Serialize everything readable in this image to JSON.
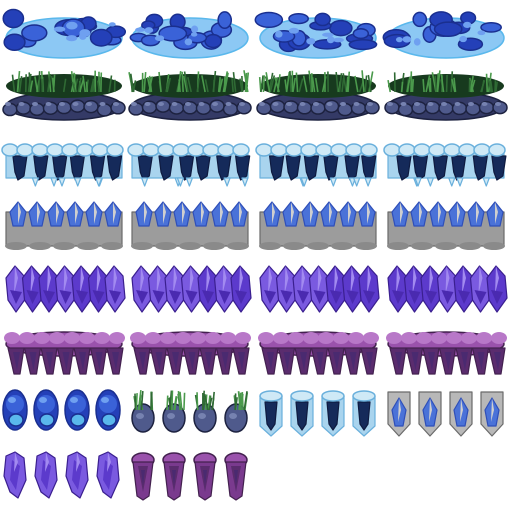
{
  "sprite_sheet": {
    "background": "#ffffff",
    "palettes": {
      "blue-rock": {
        "outline": "#1a2f8f",
        "dark": "#2440b8",
        "mid": "#3a62d8",
        "light": "#6fa0f0",
        "pale": "#8cc8f4",
        "accent": "#5ab8ec"
      },
      "grass-stone": {
        "outline": "#1d2240",
        "dark": "#343a66",
        "mid": "#4f5a8c",
        "light": "#7682b0",
        "pale": "#8f9cc8",
        "accent": "#2f6a34",
        "grass_dark": "#173a1e",
        "grass_light": "#4b9a4c"
      },
      "ice": {
        "outline": "#0f1b40",
        "dark": "#152a5a",
        "mid": "#1c3a78",
        "light": "#a9d4ee",
        "pale": "#cfe9f6",
        "accent": "#6ab0dc"
      },
      "crystal-grey": {
        "outline": "#6a6a6a",
        "dark": "#8a8a8a",
        "mid": "#9c9c9c",
        "light": "#b8b8b8",
        "pale": "#cfcfcf",
        "accent": "#4a72d8",
        "accent2": "#2f4fb8"
      },
      "amethyst": {
        "outline": "#3a1f8f",
        "dark": "#4a2ab0",
        "mid": "#5c3acc",
        "light": "#7a5ae0",
        "pale": "#a28af0",
        "accent": "#6e4fd8"
      },
      "purple-stone": {
        "outline": "#43214f",
        "dark": "#5a2c6e",
        "mid": "#7a3a8e",
        "light": "#9a52ac",
        "pale": "#b878c8",
        "accent": "#4a2a70"
      }
    },
    "tiles": [
      {
        "palette": "blue-rock",
        "kind": "ground"
      },
      {
        "palette": "blue-rock",
        "kind": "ground"
      },
      {
        "palette": "blue-rock",
        "kind": "ground"
      },
      {
        "palette": "blue-rock",
        "kind": "ground"
      },
      {
        "palette": "grass-stone",
        "kind": "ground"
      },
      {
        "palette": "grass-stone",
        "kind": "ground"
      },
      {
        "palette": "grass-stone",
        "kind": "ground"
      },
      {
        "palette": "grass-stone",
        "kind": "ground"
      },
      {
        "palette": "ice",
        "kind": "ground"
      },
      {
        "palette": "ice",
        "kind": "ground"
      },
      {
        "palette": "ice",
        "kind": "ground"
      },
      {
        "palette": "ice",
        "kind": "ground"
      },
      {
        "palette": "crystal-grey",
        "kind": "ground"
      },
      {
        "palette": "crystal-grey",
        "kind": "ground"
      },
      {
        "palette": "crystal-grey",
        "kind": "ground"
      },
      {
        "palette": "crystal-grey",
        "kind": "ground"
      },
      {
        "palette": "amethyst",
        "kind": "ground"
      },
      {
        "palette": "amethyst",
        "kind": "ground"
      },
      {
        "palette": "amethyst",
        "kind": "ground"
      },
      {
        "palette": "amethyst",
        "kind": "ground"
      },
      {
        "palette": "purple-stone",
        "kind": "ground"
      },
      {
        "palette": "purple-stone",
        "kind": "ground"
      },
      {
        "palette": "purple-stone",
        "kind": "ground"
      },
      {
        "palette": "purple-stone",
        "kind": "ground"
      },
      {
        "palette": "blue-rock",
        "kind": "column"
      },
      {
        "palette": "blue-rock",
        "kind": "column"
      },
      {
        "palette": "blue-rock",
        "kind": "column"
      },
      {
        "palette": "blue-rock",
        "kind": "column"
      },
      {
        "palette": "grass-stone",
        "kind": "column"
      },
      {
        "palette": "grass-stone",
        "kind": "column"
      },
      {
        "palette": "grass-stone",
        "kind": "column"
      },
      {
        "palette": "grass-stone",
        "kind": "column"
      },
      {
        "palette": "ice",
        "kind": "column"
      },
      {
        "palette": "ice",
        "kind": "column"
      },
      {
        "palette": "ice",
        "kind": "column"
      },
      {
        "palette": "ice",
        "kind": "column"
      },
      {
        "palette": "crystal-grey",
        "kind": "column"
      },
      {
        "palette": "crystal-grey",
        "kind": "column"
      },
      {
        "palette": "crystal-grey",
        "kind": "column"
      },
      {
        "palette": "crystal-grey",
        "kind": "column"
      },
      {
        "palette": "amethyst",
        "kind": "column"
      },
      {
        "palette": "amethyst",
        "kind": "column"
      },
      {
        "palette": "amethyst",
        "kind": "column"
      },
      {
        "palette": "amethyst",
        "kind": "column"
      },
      {
        "palette": "purple-stone",
        "kind": "column"
      },
      {
        "palette": "purple-stone",
        "kind": "column"
      },
      {
        "palette": "purple-stone",
        "kind": "column"
      },
      {
        "palette": "purple-stone",
        "kind": "column"
      }
    ]
  }
}
